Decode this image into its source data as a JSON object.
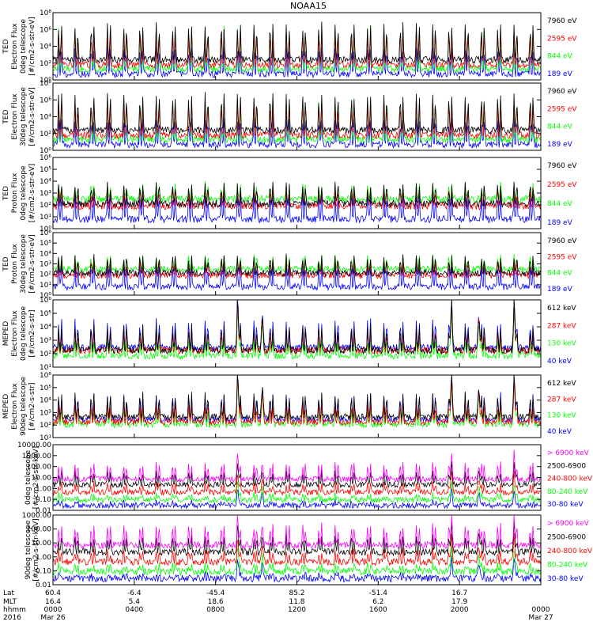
{
  "chart_data": {
    "type": "line",
    "title": "NOAA15",
    "colors": {
      "blue": "#0000ff",
      "red": "#ff0000",
      "green": "#00ff00",
      "black": "#000000",
      "magenta": "#ff00ff"
    },
    "panels": [
      {
        "ylabel": [
          "TED",
          "Electron Flux",
          "0deg telescope",
          "[#/cm2-s-str-eV]"
        ],
        "ytick_labels": [
          "10⁰",
          "10²",
          "10⁴",
          "10⁶",
          "10⁸"
        ],
        "ylim_log10": [
          0,
          8
        ],
        "legend": [
          {
            "label": "7960 eV",
            "color": "black"
          },
          {
            "label": "2595 eV",
            "color": "red"
          },
          {
            "label": "844 eV",
            "color": "green"
          },
          {
            "label": "189 eV",
            "color": "blue"
          }
        ]
      },
      {
        "ylabel": [
          "TED",
          "Electron Flux",
          "30deg telescope",
          "[#/cm2-s-str-eV]"
        ],
        "ytick_labels": [
          "10⁰",
          "10²",
          "10⁴",
          "10⁶",
          "10⁸"
        ],
        "ylim_log10": [
          0,
          8
        ],
        "legend": [
          {
            "label": "7960 eV",
            "color": "black"
          },
          {
            "label": "2595 eV",
            "color": "red"
          },
          {
            "label": "844 eV",
            "color": "green"
          },
          {
            "label": "189 eV",
            "color": "blue"
          }
        ]
      },
      {
        "ylabel": [
          "TED",
          "Proton Flux",
          "0deg telescope",
          "[#/cm2-s-str-eV]"
        ],
        "ytick_labels": [
          "10⁰",
          "10¹",
          "10²",
          "10³",
          "10⁴",
          "10⁵",
          "10⁶"
        ],
        "ylim_log10": [
          0,
          6
        ],
        "legend": [
          {
            "label": "7960 eV",
            "color": "black"
          },
          {
            "label": "2595 eV",
            "color": "red"
          },
          {
            "label": "844 eV",
            "color": "green"
          },
          {
            "label": "189 eV",
            "color": "blue"
          }
        ]
      },
      {
        "ylabel": [
          "TED",
          "Proton Flux",
          "30deg telescope",
          "[#/cm2-s-str-eV]"
        ],
        "ytick_labels": [
          "10⁰",
          "10¹",
          "10²",
          "10³",
          "10⁴",
          "10⁵",
          "10⁶"
        ],
        "ylim_log10": [
          0,
          6
        ],
        "legend": [
          {
            "label": "7960 eV",
            "color": "black"
          },
          {
            "label": "2595 eV",
            "color": "red"
          },
          {
            "label": "844 eV",
            "color": "green"
          },
          {
            "label": "189 eV",
            "color": "blue"
          }
        ]
      },
      {
        "ylabel": [
          "MEPED",
          "Electron Flux",
          "0deg telescope",
          "[#/cm2-s-str]"
        ],
        "ytick_labels": [
          "10¹",
          "10²",
          "10³",
          "10⁴",
          "10⁵",
          "10⁶"
        ],
        "ylim_log10": [
          1,
          6
        ],
        "legend": [
          {
            "label": "612 keV",
            "color": "black"
          },
          {
            "label": "287 keV",
            "color": "red"
          },
          {
            "label": "130 keV",
            "color": "green"
          },
          {
            "label": "40 keV",
            "color": "blue"
          }
        ]
      },
      {
        "ylabel": [
          "MEPED",
          "Electron Flux",
          "90deg telescope",
          "[#/cm2-s-str]"
        ],
        "ytick_labels": [
          "10¹",
          "10²",
          "10³",
          "10⁴",
          "10⁵",
          "10⁶"
        ],
        "ylim_log10": [
          1,
          6
        ],
        "legend": [
          {
            "label": "612 keV",
            "color": "black"
          },
          {
            "label": "287 keV",
            "color": "red"
          },
          {
            "label": "130 keV",
            "color": "green"
          },
          {
            "label": "40 keV",
            "color": "blue"
          }
        ]
      },
      {
        "ylabel": [
          "0deg telescope",
          "[#/cm2-s-str-keV]"
        ],
        "ytick_labels": [
          "0.01",
          "0.10",
          "1.00",
          "10.00",
          "100.00",
          "1000.00",
          "10000.00"
        ],
        "ylim_log10": [
          -2,
          4
        ],
        "legend": [
          {
            "label": "> 6900 keV",
            "color": "magenta"
          },
          {
            "label": "2500-6900",
            "color": "black"
          },
          {
            "label": "240-800 keV",
            "color": "red"
          },
          {
            "label": "80-240 keV",
            "color": "green"
          },
          {
            "label": "30-80 keV",
            "color": "blue"
          }
        ]
      },
      {
        "ylabel": [
          "90deg telescope",
          "[#/cm2-s-str-keV]"
        ],
        "ytick_labels": [
          "0.01",
          "0.10",
          "1.00",
          "10.00",
          "100.00",
          "1000.00"
        ],
        "ylim_log10": [
          -2,
          3
        ],
        "legend": [
          {
            "label": "> 6900 keV",
            "color": "magenta"
          },
          {
            "label": "2500-6900",
            "color": "black"
          },
          {
            "label": "240-800 keV",
            "color": "red"
          },
          {
            "label": "80-240 keV",
            "color": "green"
          },
          {
            "label": "30-80 keV",
            "color": "blue"
          }
        ]
      }
    ],
    "x_axis": {
      "row_labels": [
        "Lat",
        "MLT",
        "hhmm",
        "2016"
      ],
      "ticks": [
        {
          "lat": "60.4",
          "mlt": "16.4",
          "hhmm": "0000",
          "date": "Mar 26"
        },
        {
          "lat": "-6.4",
          "mlt": "5.4",
          "hhmm": "0400",
          "date": ""
        },
        {
          "lat": "-45.4",
          "mlt": "18.6",
          "hhmm": "0800",
          "date": ""
        },
        {
          "lat": "85.2",
          "mlt": "11.8",
          "hhmm": "1200",
          "date": ""
        },
        {
          "lat": "-51.4",
          "mlt": "6.2",
          "hhmm": "1600",
          "date": ""
        },
        {
          "lat": "16.7",
          "mlt": "17.9",
          "hhmm": "2000",
          "date": ""
        },
        {
          "lat": "",
          "mlt": "",
          "hhmm": "0000",
          "date": "Mar 27"
        }
      ],
      "xlim_hours": [
        0,
        24
      ]
    }
  }
}
